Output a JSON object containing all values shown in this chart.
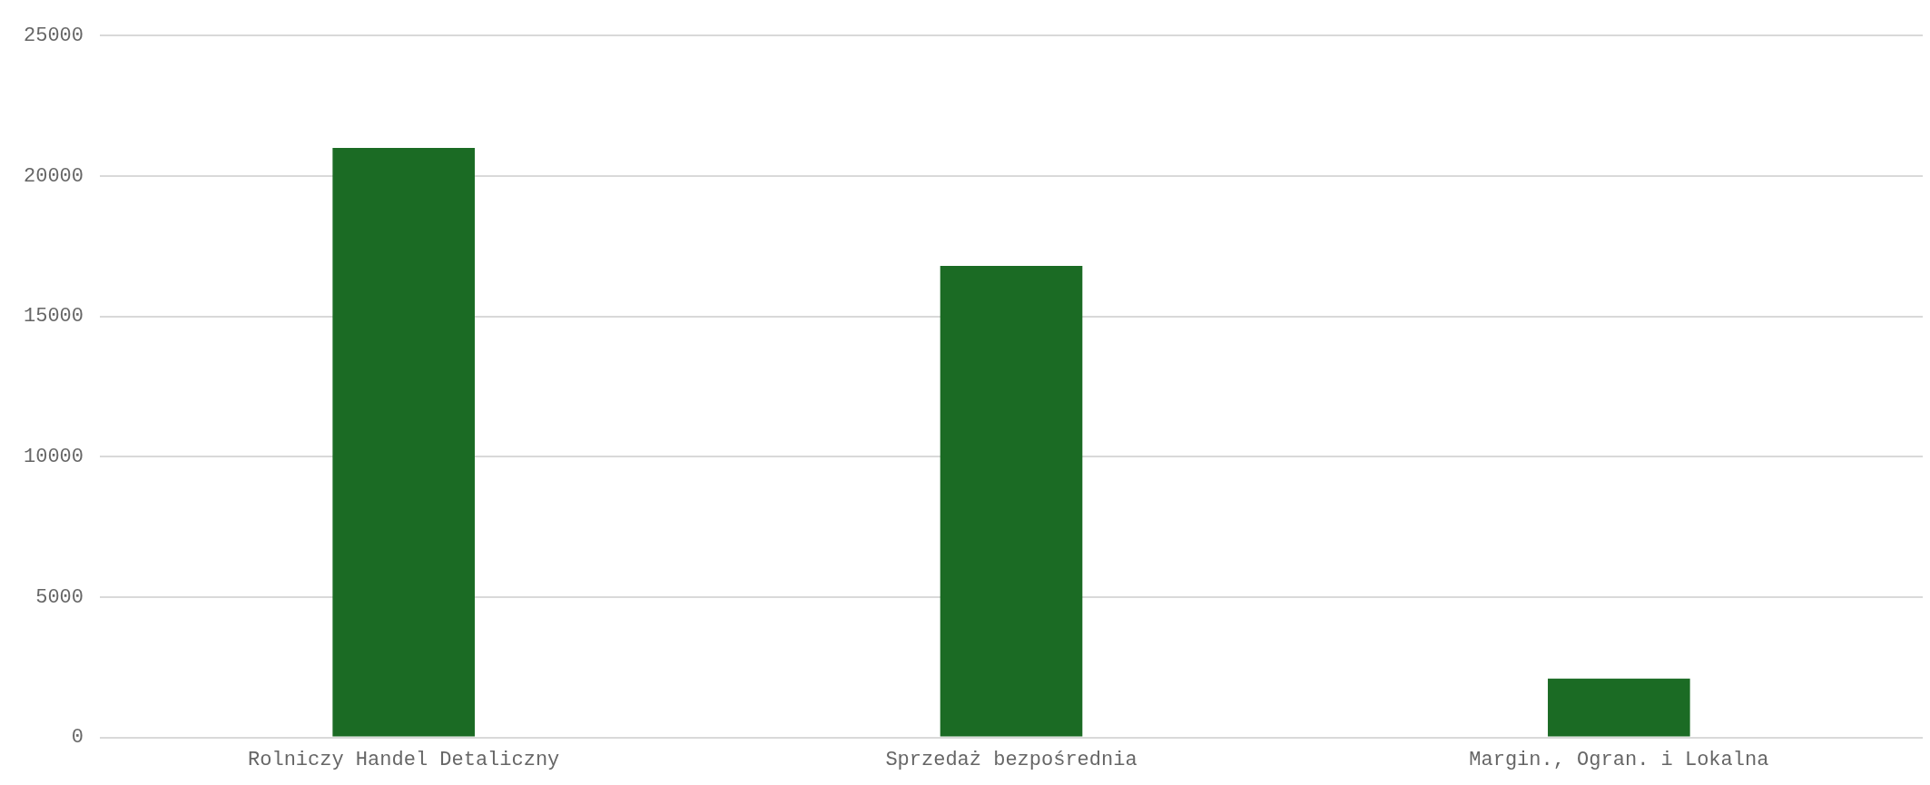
{
  "chart_data": {
    "type": "bar",
    "categories": [
      "Rolniczy Handel Detaliczny",
      "Sprzedaż bezpośrednia",
      "Margin., Ogran. i Lokalna"
    ],
    "values": [
      21000,
      16800,
      2100
    ],
    "color": "#1b6b24",
    "ylim": [
      0,
      25000
    ],
    "yticks": [
      0,
      5000,
      10000,
      15000,
      20000,
      25000
    ],
    "grid": "y",
    "legend": false
  }
}
